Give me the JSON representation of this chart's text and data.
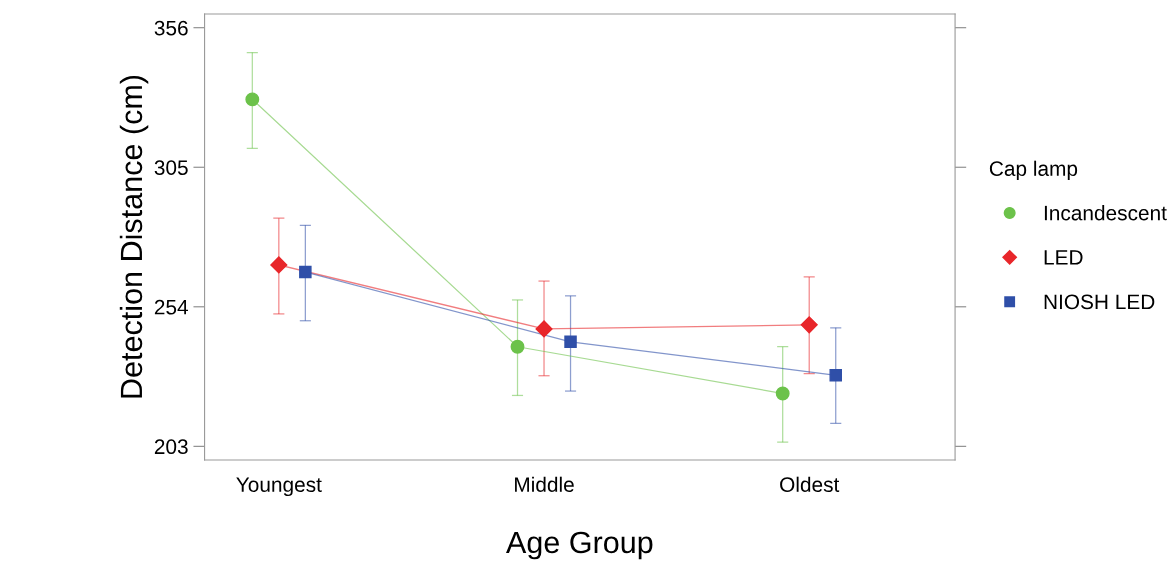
{
  "chart_data": {
    "type": "line",
    "xlabel": "Age Group",
    "ylabel": "Detection Distance (cm)",
    "legend_title": "Cap lamp",
    "legend": "right",
    "categories": [
      "Youngest",
      "Middle",
      "Oldest"
    ],
    "ylim": [
      198,
      361
    ],
    "yticks": [
      203,
      254,
      305,
      356
    ],
    "grid": false,
    "series": [
      {
        "name": "Incandescent",
        "color": "#6cc24a",
        "marker": "circle",
        "values": [
          329.8,
          239.4,
          222.3
        ],
        "errors": [
          [
            311.9,
            346.9
          ],
          [
            221.6,
            256.5
          ],
          [
            204.5,
            239.4
          ]
        ]
      },
      {
        "name": "LED",
        "color": "#e8262a",
        "marker": "diamond",
        "values": [
          269.3,
          245.9,
          247.4
        ],
        "errors": [
          [
            251.4,
            286.4
          ],
          [
            228.8,
            263.4
          ],
          [
            229.6,
            264.9
          ]
        ]
      },
      {
        "name": "NIOSH LED",
        "color": "#2f4fa8",
        "marker": "square",
        "values": [
          266.7,
          241.2,
          229.0
        ],
        "errors": [
          [
            248.9,
            283.8
          ],
          [
            223.2,
            258.0
          ],
          [
            211.4,
            246.3
          ]
        ]
      }
    ]
  }
}
